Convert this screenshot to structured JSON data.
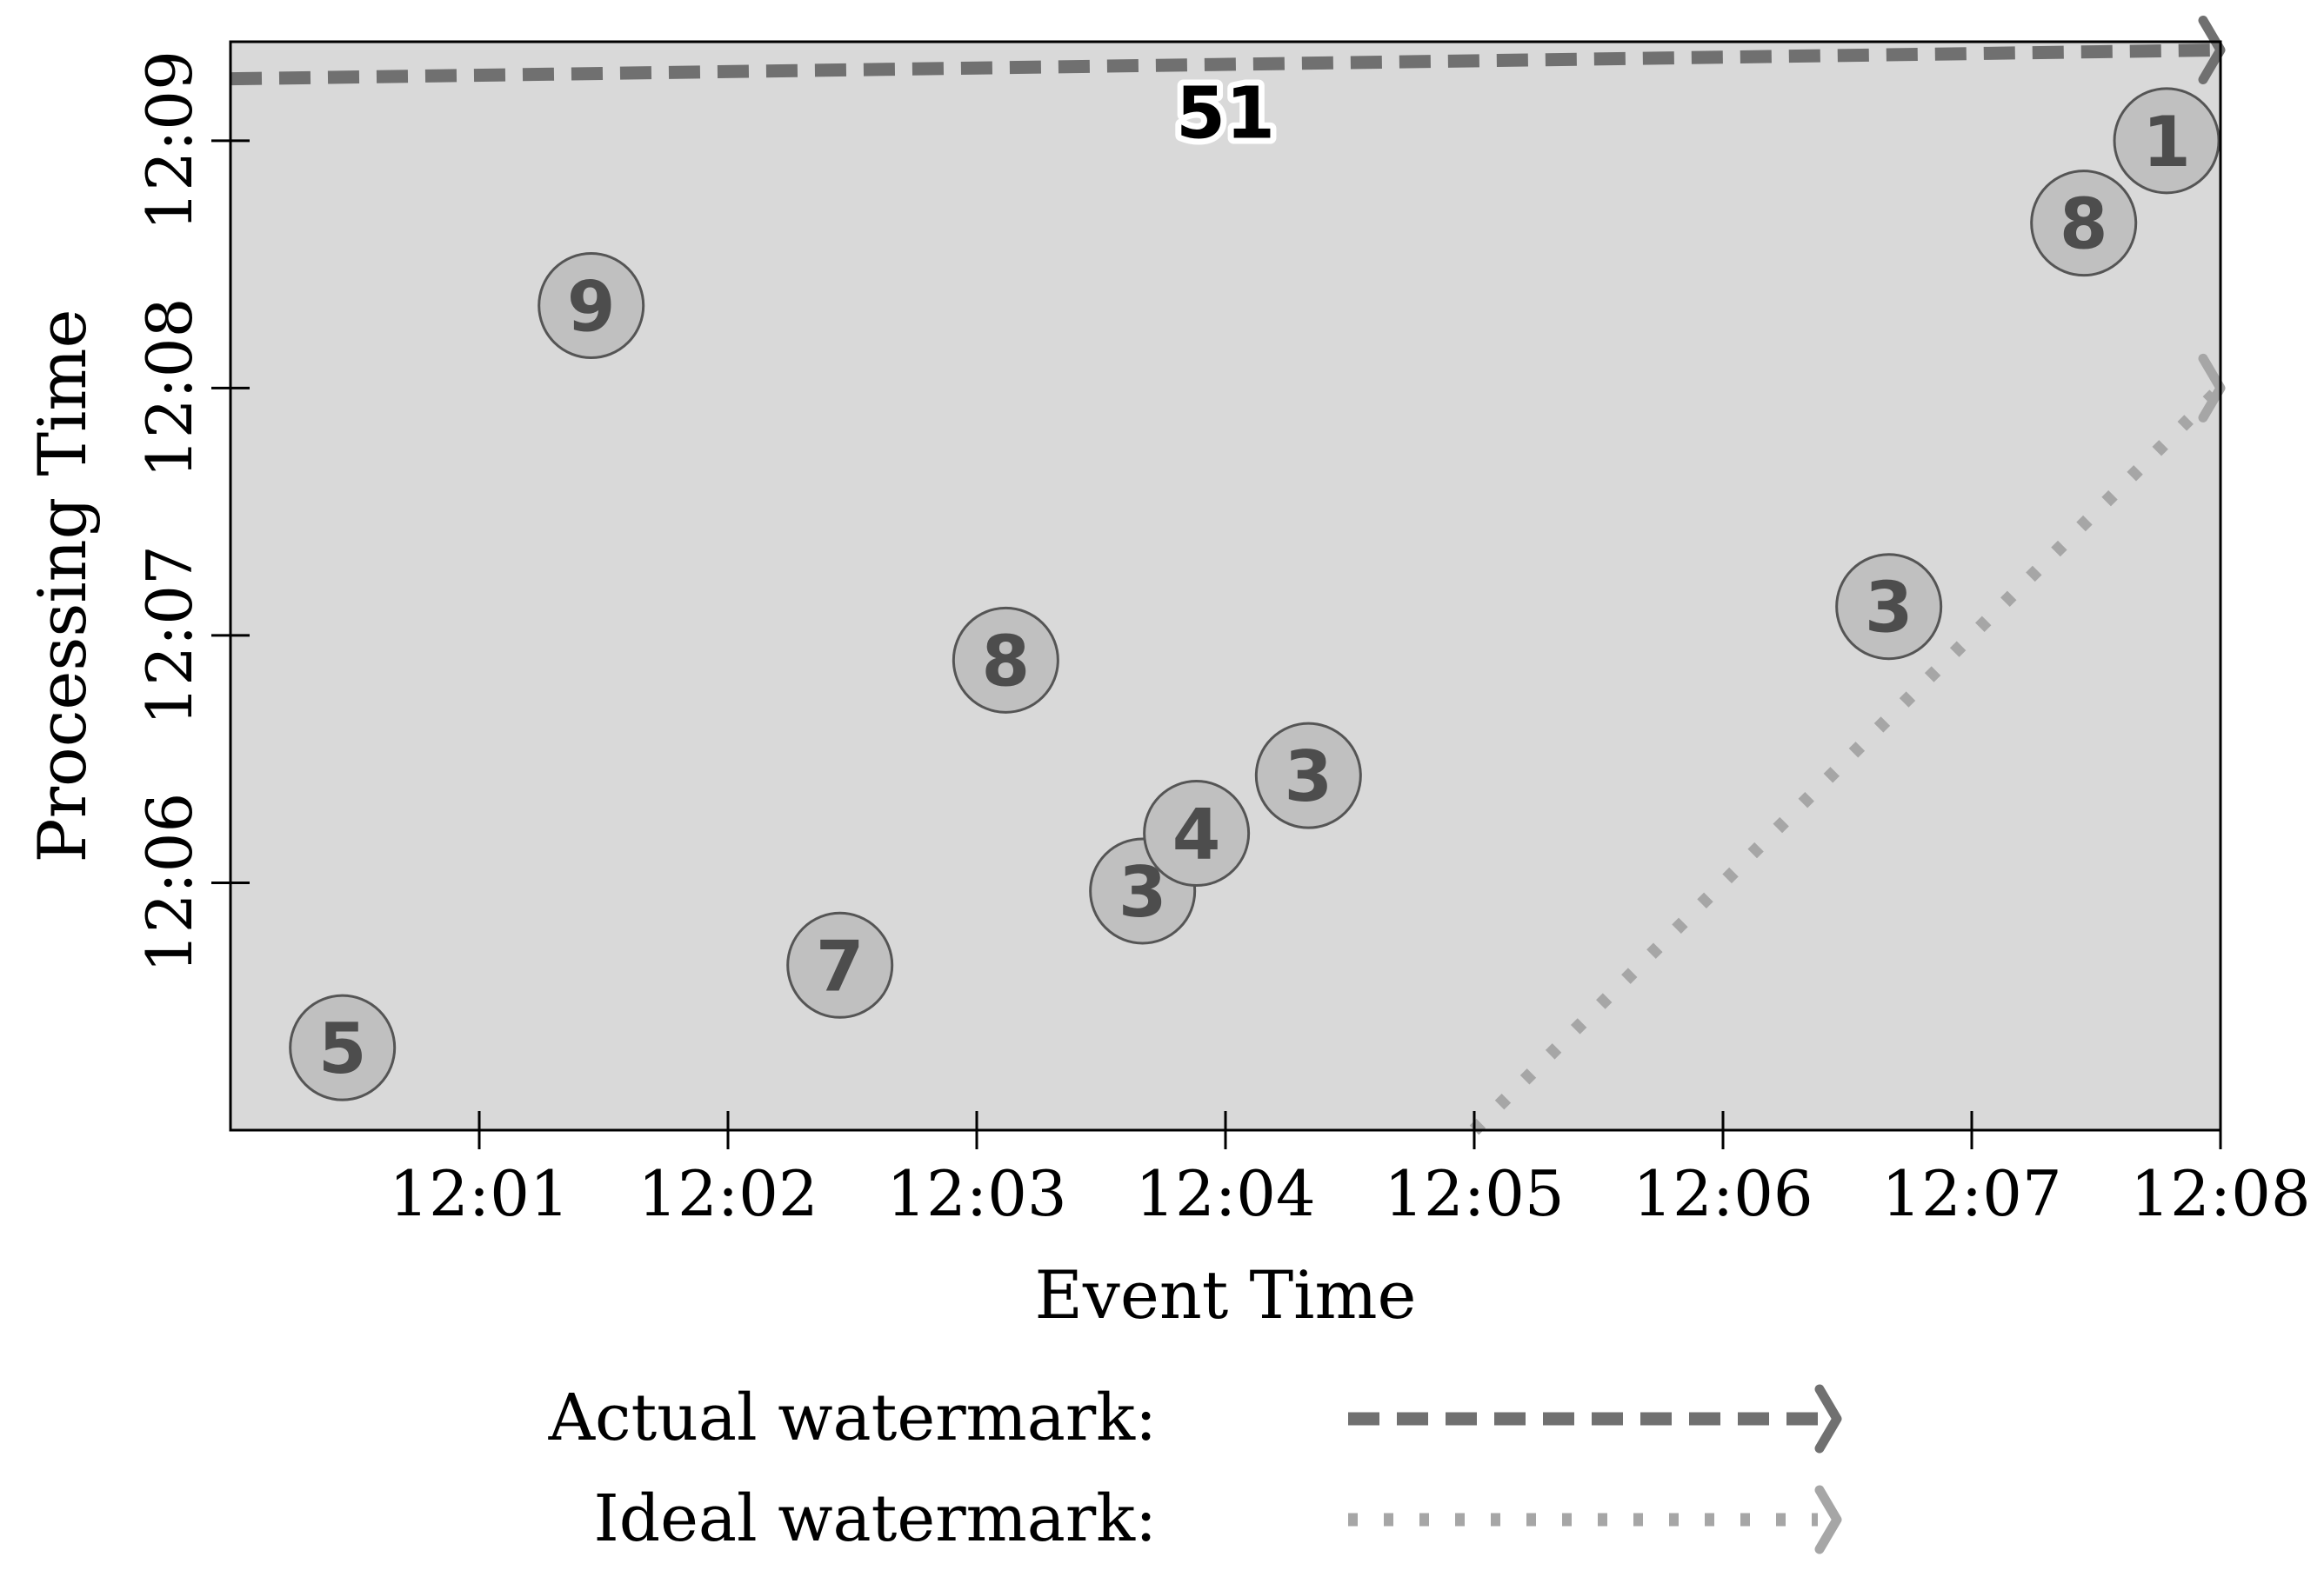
{
  "chart_data": {
    "type": "scatter",
    "title": "",
    "xlabel": "Event Time",
    "ylabel": "Processing Time",
    "x_ticks": [
      "12:01",
      "12:02",
      "12:03",
      "12:04",
      "12:05",
      "12:06",
      "12:07",
      "12:08"
    ],
    "y_ticks": [
      "12:06",
      "12:07",
      "12:08",
      "12:09"
    ],
    "xlim": [
      "12:00",
      "12:08"
    ],
    "ylim": [
      "12:05",
      "12:09:24"
    ],
    "grid": false,
    "plot_background": "#d9d9d9",
    "points": [
      {
        "x": "12:00:27",
        "y": "12:05:20",
        "value": "5"
      },
      {
        "x": "12:01:27",
        "y": "12:08:20",
        "value": "9"
      },
      {
        "x": "12:02:27",
        "y": "12:05:40",
        "value": "7"
      },
      {
        "x": "12:03:07",
        "y": "12:06:54",
        "value": "8"
      },
      {
        "x": "12:03:40",
        "y": "12:05:58",
        "value": "3"
      },
      {
        "x": "12:03:53",
        "y": "12:06:12",
        "value": "4"
      },
      {
        "x": "12:04:20",
        "y": "12:06:26",
        "value": "3"
      },
      {
        "x": "12:06:40",
        "y": "12:07:07",
        "value": "3"
      },
      {
        "x": "12:07:27",
        "y": "12:08:40",
        "value": "8"
      },
      {
        "x": "12:07:47",
        "y": "12:09:00",
        "value": "1"
      }
    ],
    "annotations": [
      {
        "text": "51",
        "x": "12:04",
        "y": "12:09:07"
      }
    ],
    "series": [
      {
        "name": "Actual watermark:",
        "style": "dashed",
        "color": "#707070",
        "points": [
          {
            "x": "12:00",
            "y": "12:09:15"
          },
          {
            "x": "12:08",
            "y": "12:09:22"
          }
        ]
      },
      {
        "name": "Ideal watermark:",
        "style": "dotted",
        "color": "#a6a6a6",
        "points": [
          {
            "x": "12:05",
            "y": "12:05"
          },
          {
            "x": "12:08",
            "y": "12:08"
          }
        ]
      }
    ],
    "legend": {
      "position": "bottom",
      "entries": [
        "Actual watermark:",
        "Ideal watermark:"
      ]
    }
  }
}
